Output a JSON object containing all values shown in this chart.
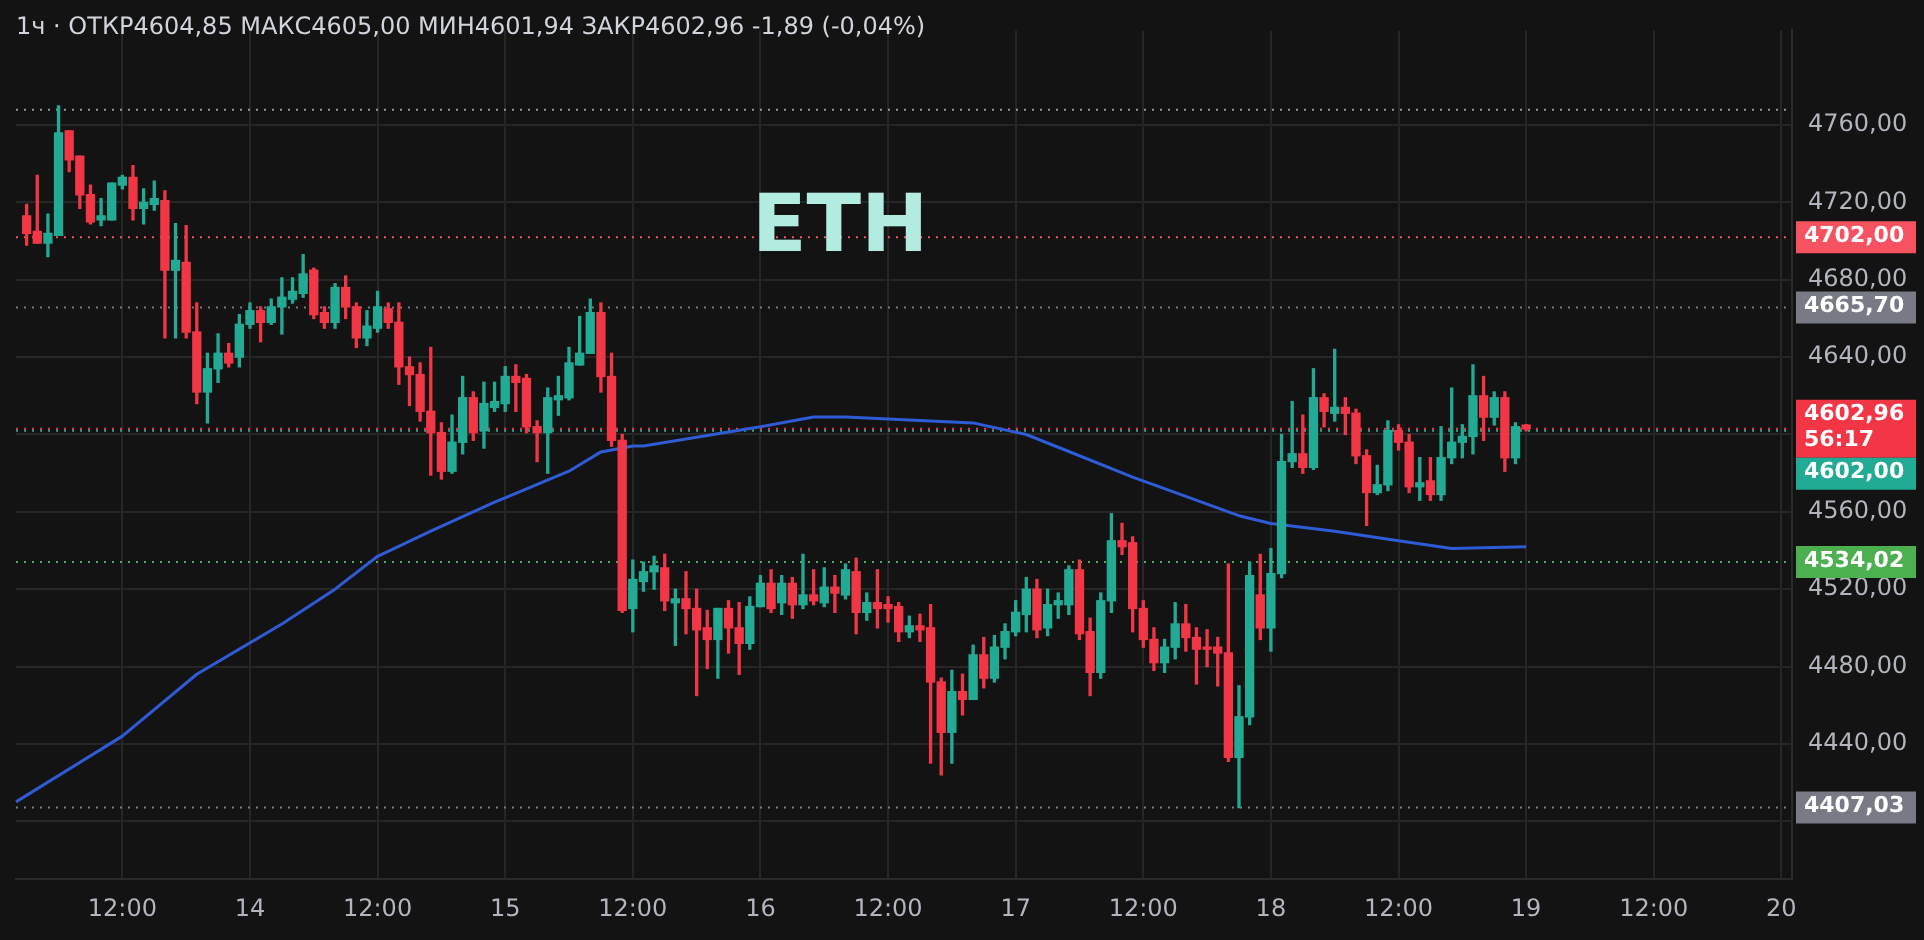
{
  "chart_data": {
    "type": "candlestick",
    "title": "ETH",
    "subtitle": "1ч · ОТКР4604,85 МАКС4605,00 МИН4601,94 ЗАКР4602,96 -1,89 (-0,04%)",
    "categories": [
      null,
      null,
      null,
      null,
      null,
      null,
      null,
      null,
      null,
      null,
      "12:00",
      null,
      null,
      null,
      null,
      null,
      null,
      null,
      null,
      null,
      null,
      null,
      "14",
      null,
      null,
      null,
      null,
      null,
      null,
      null,
      null,
      null,
      null,
      null,
      "12:00",
      null,
      null,
      null,
      null,
      null,
      null,
      null,
      null,
      null,
      null,
      null,
      "15",
      null,
      null,
      null,
      null,
      null,
      null,
      null,
      null,
      null,
      null,
      null,
      "12:00",
      null,
      null,
      null,
      null,
      null,
      null,
      null,
      null,
      null,
      null,
      null,
      "16",
      null,
      null,
      null,
      null,
      null,
      null,
      null,
      null,
      null,
      null,
      null,
      "12:00",
      null,
      null,
      null,
      null,
      null,
      null,
      null,
      null,
      null,
      null,
      null,
      "17",
      null,
      null,
      null,
      null,
      null,
      null,
      null,
      null,
      null,
      null,
      null,
      "12:00",
      null,
      null,
      null,
      null,
      null,
      null,
      null,
      null,
      null,
      null,
      null,
      "18",
      null,
      null,
      null,
      null,
      null,
      null,
      null,
      null,
      null,
      null,
      null,
      "12:00",
      null,
      null,
      null,
      null,
      null,
      null,
      null,
      null,
      null,
      null,
      null,
      "19",
      null,
      null,
      null,
      null,
      null,
      null,
      null,
      null,
      null,
      null,
      null,
      "12:00",
      null,
      null,
      null,
      null,
      null,
      null,
      null,
      null,
      null,
      null,
      null,
      "20",
      null
    ],
    "ohlc": [
      null,
      [
        4713,
        4719,
        4698,
        4704
      ],
      [
        4705,
        4734,
        4699,
        4699
      ],
      [
        4699,
        4714,
        4692,
        4704
      ],
      [
        4703,
        4770,
        4703,
        4756
      ],
      [
        4757,
        4757,
        4736,
        4742
      ],
      [
        4744,
        4744,
        4717,
        4724
      ],
      [
        4724,
        4729,
        4709,
        4710
      ],
      [
        4711,
        4722,
        4708,
        4713
      ],
      [
        4711,
        4730,
        4711,
        4730
      ],
      [
        4729,
        4734,
        4727,
        4733
      ],
      [
        4733,
        4739,
        4711,
        4717
      ],
      [
        4717,
        4727,
        4709,
        4720
      ],
      [
        4719,
        4731,
        4716,
        4722
      ],
      [
        4721,
        4726,
        4650,
        4685
      ],
      [
        4685,
        4709,
        4650,
        4690
      ],
      [
        4689,
        4708,
        4650,
        4653
      ],
      [
        4653,
        4668,
        4616,
        4622
      ],
      [
        4622,
        4642,
        4606,
        4634
      ],
      [
        4634,
        4652,
        4627,
        4642
      ],
      [
        4642,
        4647,
        4635,
        4637
      ],
      [
        4640,
        4662,
        4635,
        4657
      ],
      [
        4657,
        4668,
        4655,
        4664
      ],
      [
        4664,
        4666,
        4648,
        4658
      ],
      [
        4658,
        4670,
        4657,
        4666
      ],
      [
        4666,
        4681,
        4652,
        4671
      ],
      [
        4670,
        4681,
        4668,
        4674
      ],
      [
        4673,
        4693,
        4671,
        4683
      ],
      [
        4685,
        4686,
        4660,
        4662
      ],
      [
        4663,
        4666,
        4655,
        4658
      ],
      [
        4658,
        4678,
        4655,
        4676
      ],
      [
        4676,
        4682,
        4660,
        4666
      ],
      [
        4666,
        4668,
        4645,
        4650
      ],
      [
        4650,
        4664,
        4646,
        4656
      ],
      [
        4655,
        4674,
        4653,
        4666
      ],
      [
        4665,
        4668,
        4655,
        4658
      ],
      [
        4658,
        4668,
        4626,
        4635
      ],
      [
        4635,
        4640,
        4615,
        4631
      ],
      [
        4631,
        4637,
        4607,
        4612
      ],
      [
        4612,
        4645,
        4579,
        4601
      ],
      [
        4601,
        4606,
        4577,
        4581
      ],
      [
        4581,
        4610,
        4580,
        4596
      ],
      [
        4596,
        4630,
        4590,
        4619
      ],
      [
        4619,
        4622,
        4597,
        4601
      ],
      [
        4602,
        4627,
        4593,
        4616
      ],
      [
        4614,
        4627,
        4612,
        4617
      ],
      [
        4616,
        4635,
        4612,
        4630
      ],
      [
        4630,
        4636,
        4612,
        4627
      ],
      [
        4629,
        4631,
        4601,
        4604
      ],
      [
        4604,
        4607,
        4586,
        4601
      ],
      [
        4601,
        4624,
        4580,
        4619
      ],
      [
        4618,
        4630,
        4610,
        4620
      ],
      [
        4619,
        4645,
        4618,
        4637
      ],
      [
        4636,
        4661,
        4636,
        4642
      ],
      [
        4642,
        4670,
        4642,
        4663
      ],
      [
        4663,
        4668,
        4622,
        4630
      ],
      [
        4630,
        4642,
        4594,
        4597
      ],
      [
        4597,
        4600,
        4508,
        4509
      ],
      [
        4510,
        4535,
        4498,
        4525
      ],
      [
        4524,
        4534,
        4519,
        4529
      ],
      [
        4529,
        4537,
        4520,
        4532
      ],
      [
        4531,
        4538,
        4509,
        4514
      ],
      [
        4513,
        4520,
        4491,
        4515
      ],
      [
        4515,
        4529,
        4497,
        4510
      ],
      [
        4510,
        4520,
        4465,
        4499
      ],
      [
        4500,
        4509,
        4479,
        4494
      ],
      [
        4494,
        4510,
        4474,
        4510
      ],
      [
        4510,
        4514,
        4487,
        4500
      ],
      [
        4500,
        4513,
        4476,
        4492
      ],
      [
        4492,
        4516,
        4489,
        4511
      ],
      [
        4511,
        4527,
        4511,
        4523
      ],
      [
        4523,
        4530,
        4508,
        4510
      ],
      [
        4513,
        4527,
        4507,
        4523
      ],
      [
        4523,
        4526,
        4505,
        4512
      ],
      [
        4512,
        4538,
        4510,
        4517
      ],
      [
        4517,
        4530,
        4512,
        4514
      ],
      [
        4513,
        4531,
        4511,
        4521
      ],
      [
        4521,
        4527,
        4508,
        4518
      ],
      [
        4517,
        4533,
        4515,
        4530
      ],
      [
        4529,
        4536,
        4497,
        4508
      ],
      [
        4508,
        4518,
        4504,
        4513
      ],
      [
        4513,
        4530,
        4500,
        4510
      ],
      [
        4512,
        4516,
        4503,
        4510
      ],
      [
        4511,
        4513,
        4493,
        4498
      ],
      [
        4498,
        4506,
        4495,
        4501
      ],
      [
        4501,
        4507,
        4493,
        4499
      ],
      [
        4500,
        4512,
        4430,
        4472
      ],
      [
        4472,
        4474,
        4424,
        4446
      ],
      [
        4446,
        4478,
        4430,
        4467
      ],
      [
        4467,
        4476,
        4455,
        4463
      ],
      [
        4463,
        4491,
        4463,
        4486
      ],
      [
        4486,
        4495,
        4469,
        4474
      ],
      [
        4474,
        4496,
        4472,
        4490
      ],
      [
        4490,
        4502,
        4484,
        4498
      ],
      [
        4498,
        4514,
        4496,
        4508
      ],
      [
        4507,
        4526,
        4498,
        4520
      ],
      [
        4520,
        4525,
        4495,
        4499
      ],
      [
        4500,
        4520,
        4496,
        4512
      ],
      [
        4512,
        4518,
        4505,
        4514
      ],
      [
        4512,
        4532,
        4507,
        4530
      ],
      [
        4530,
        4535,
        4494,
        4497
      ],
      [
        4498,
        4505,
        4465,
        4477
      ],
      [
        4477,
        4518,
        4474,
        4514
      ],
      [
        4514,
        4559,
        4508,
        4545
      ],
      [
        4545,
        4554,
        4538,
        4542
      ],
      [
        4544,
        4547,
        4498,
        4510
      ],
      [
        4510,
        4514,
        4490,
        4494
      ],
      [
        4494,
        4500,
        4478,
        4482
      ],
      [
        4482,
        4494,
        4477,
        4490
      ],
      [
        4490,
        4513,
        4484,
        4502
      ],
      [
        4502,
        4512,
        4488,
        4495
      ],
      [
        4495,
        4500,
        4471,
        4489
      ],
      [
        4490,
        4499,
        4480,
        4489
      ],
      [
        4490,
        4495,
        4470,
        4487
      ],
      [
        4487,
        4533,
        4431,
        4433
      ],
      [
        4433,
        4470,
        4407,
        4454
      ],
      [
        4454,
        4534,
        4450,
        4527
      ],
      [
        4517,
        4538,
        4494,
        4500
      ],
      [
        4500,
        4541,
        4488,
        4528
      ],
      [
        4528,
        4600,
        4526,
        4586
      ],
      [
        4586,
        4617,
        4583,
        4590
      ],
      [
        4590,
        4610,
        4580,
        4583
      ],
      [
        4583,
        4634,
        4582,
        4619
      ],
      [
        4619,
        4621,
        4604,
        4612
      ],
      [
        4611,
        4644,
        4607,
        4614
      ],
      [
        4614,
        4619,
        4600,
        4611
      ],
      [
        4611,
        4613,
        4585,
        4589
      ],
      [
        4589,
        4592,
        4553,
        4570
      ],
      [
        4570,
        4584,
        4569,
        4574
      ],
      [
        4574,
        4607,
        4571,
        4602
      ],
      [
        4602,
        4605,
        4592,
        4596
      ],
      [
        4596,
        4600,
        4570,
        4573
      ],
      [
        4573,
        4588,
        4566,
        4575
      ],
      [
        4576,
        4588,
        4566,
        4569
      ],
      [
        4569,
        4604,
        4566,
        4588
      ],
      [
        4588,
        4624,
        4585,
        4596
      ],
      [
        4596,
        4605,
        4588,
        4599
      ],
      [
        4599,
        4636,
        4590,
        4620
      ],
      [
        4620,
        4630,
        4597,
        4609
      ],
      [
        4609,
        4622,
        4605,
        4619
      ],
      [
        4619,
        4622,
        4581,
        4588
      ],
      [
        4588,
        4606,
        4585,
        4604
      ],
      [
        4604.85,
        4605,
        4601.94,
        4602.96
      ],
      null,
      null,
      null,
      null,
      null,
      null,
      null,
      null,
      null,
      null,
      null,
      null,
      null,
      null,
      null,
      null,
      null,
      null,
      null,
      null,
      null,
      null,
      null,
      null,
      null
    ],
    "series": [
      {
        "type": "line",
        "color": "#2e5bd6",
        "values": [
          4410,
          null,
          null,
          null,
          null,
          null,
          null,
          null,
          null,
          null,
          4444,
          null,
          null,
          null,
          null,
          null,
          null,
          4476,
          null,
          null,
          null,
          null,
          null,
          null,
          null,
          4502,
          null,
          null,
          null,
          null,
          4520,
          null,
          null,
          null,
          4537,
          null,
          null,
          null,
          null,
          4550,
          null,
          null,
          null,
          null,
          null,
          4565,
          null,
          null,
          null,
          null,
          null,
          null,
          4581,
          null,
          null,
          4591,
          null,
          null,
          4594,
          4594,
          null,
          null,
          null,
          null,
          null,
          null,
          null,
          null,
          null,
          null,
          4604,
          null,
          null,
          null,
          null,
          4609,
          null,
          null,
          4609,
          null,
          null,
          null,
          null,
          null,
          null,
          null,
          4607,
          null,
          null,
          null,
          4606,
          null,
          null,
          null,
          null,
          4600,
          null,
          null,
          null,
          null,
          4589,
          null,
          null,
          null,
          null,
          4578,
          null,
          null,
          null,
          null,
          4568,
          null,
          null,
          null,
          4560,
          4558,
          null,
          null,
          4554,
          null,
          null,
          null,
          null,
          null,
          4550,
          null,
          null,
          null,
          null,
          null,
          4545,
          null,
          null,
          null,
          null,
          4541,
          null,
          null,
          null,
          null,
          null,
          null,
          4542,
          null,
          null,
          null,
          null,
          null,
          null,
          null,
          null,
          null,
          null,
          null,
          null,
          null,
          null,
          null,
          null,
          null,
          null,
          null,
          null,
          null,
          null,
          null,
          null,
          null
        ]
      }
    ],
    "ylim": [
      4370,
      4809
    ],
    "yticks": [
      {
        "value": 4400,
        "label": null
      },
      {
        "value": 4440,
        "label": "4440,00"
      },
      {
        "value": 4480,
        "label": "4480,00"
      },
      {
        "value": 4520,
        "label": "4520,00"
      },
      {
        "value": 4560,
        "label": "4560,00"
      },
      {
        "value": 4600,
        "label": null
      },
      {
        "value": 4640,
        "label": "4640,00"
      },
      {
        "value": 4680,
        "label": "4680,00"
      },
      {
        "value": 4720,
        "label": "4720,00"
      },
      {
        "value": 4760,
        "label": "4760,00"
      }
    ],
    "ref_lines": [
      {
        "axis": "y",
        "value": 4768,
        "line_style": "dotted",
        "color": "#9598a1"
      },
      {
        "axis": "y",
        "value": 4702,
        "label": "4702,00",
        "line_style": "dotted",
        "color": "#f7525f"
      },
      {
        "axis": "y",
        "value": 4665.7,
        "label": "4665,70",
        "line_style": "dotted",
        "color": "#787b86"
      },
      {
        "axis": "y",
        "value": 4602.96,
        "label": "4602,96\n56:17",
        "line_style": "dotted",
        "color": "#f23645"
      },
      {
        "axis": "y",
        "value": 4602,
        "label": "4602,00",
        "line_style": "dotted",
        "color": "#22ab94"
      },
      {
        "axis": "y",
        "value": 4534.02,
        "label": "4534,02",
        "line_style": "dotted",
        "color": "#4caf50"
      },
      {
        "axis": "y",
        "value": 4407.03,
        "label": "4407,03",
        "line_style": "dotted",
        "color": "#787b86"
      }
    ],
    "grid": true,
    "legend": false
  }
}
